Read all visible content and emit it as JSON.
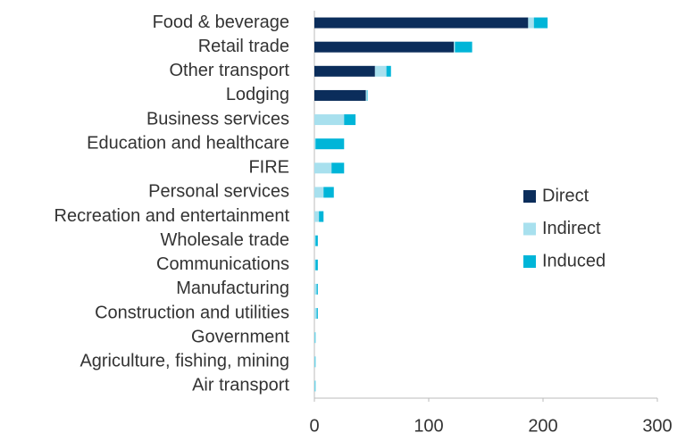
{
  "chart_data": {
    "type": "stacked-barh",
    "categories": [
      "Food & beverage",
      "Retail trade",
      "Other transport",
      "Lodging",
      "Business services",
      "Education and healthcare",
      "FIRE",
      "Personal services",
      "Recreation and entertainment",
      "Wholesale trade",
      "Communications",
      "Manufacturing",
      "Construction and utilities",
      "Government",
      "Agriculture, fishing, mining",
      "Air transport"
    ],
    "series": [
      {
        "name": "Direct",
        "color": "#0b2d5b",
        "values": [
          187,
          122,
          53,
          45,
          0,
          0,
          0,
          0,
          0,
          0,
          0,
          0,
          0,
          0,
          0,
          0
        ]
      },
      {
        "name": "Indirect",
        "color": "#a8e0ee",
        "values": [
          5,
          1,
          10,
          1,
          26,
          1,
          15,
          8,
          4,
          1,
          1,
          2,
          2,
          0.5,
          0.5,
          0.5
        ]
      },
      {
        "name": "Induced",
        "color": "#00b5d8",
        "values": [
          12,
          15,
          4,
          0.5,
          10,
          25,
          11,
          9,
          4,
          2,
          2,
          1,
          1,
          0.5,
          0.5,
          0.5
        ]
      }
    ],
    "xlim": [
      0,
      300
    ],
    "xticks": [
      0,
      100,
      200,
      300
    ],
    "grid": false,
    "legend": "right"
  }
}
